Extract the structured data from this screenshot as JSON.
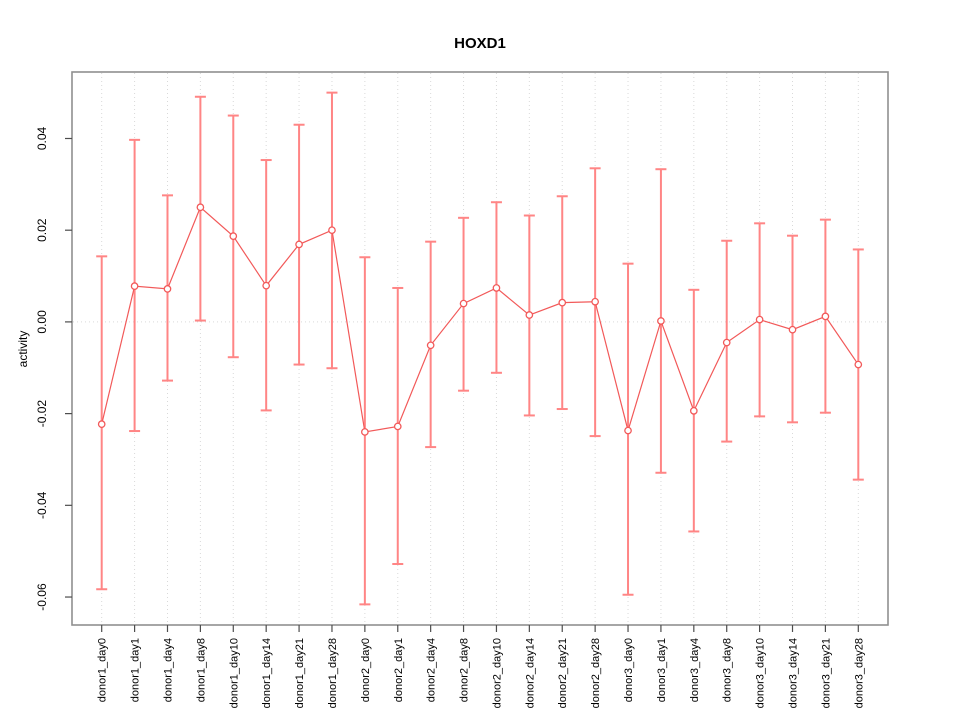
{
  "chart_data": {
    "type": "line",
    "subtype": "points-with-error-bars",
    "title": "HOXD1",
    "ylabel": "activity",
    "xlabel": "",
    "legend": "none",
    "grid": "dotted vertical gridline at each category; dotted horizontal line at y=0",
    "categories": [
      "donor1_day0",
      "donor1_day1",
      "donor1_day4",
      "donor1_day8",
      "donor1_day10",
      "donor1_day14",
      "donor1_day21",
      "donor1_day28",
      "donor2_day0",
      "donor2_day1",
      "donor2_day4",
      "donor2_day8",
      "donor2_day10",
      "donor2_day14",
      "donor2_day21",
      "donor2_day28",
      "donor3_day0",
      "donor3_day1",
      "donor3_day4",
      "donor3_day8",
      "donor3_day10",
      "donor3_day14",
      "donor3_day21",
      "donor3_day28"
    ],
    "series": [
      {
        "name": "activity",
        "values": [
          -0.0223,
          0.0078,
          0.0072,
          0.025,
          0.0187,
          0.0079,
          0.0169,
          0.02,
          -0.024,
          -0.0228,
          -0.0051,
          0.004,
          0.0074,
          0.0015,
          0.0042,
          0.0044,
          -0.0237,
          0.0002,
          -0.0194,
          -0.0045,
          0.0005,
          -0.0017,
          0.0012,
          -0.0093
        ],
        "err_upper": [
          0.0143,
          0.0397,
          0.0276,
          0.0491,
          0.045,
          0.0353,
          0.043,
          0.05,
          0.0141,
          0.0074,
          0.0175,
          0.0227,
          0.0261,
          0.0232,
          0.0274,
          0.0335,
          0.0127,
          0.0333,
          0.007,
          0.0177,
          0.0215,
          0.0188,
          0.0223,
          0.0158
        ],
        "err_lower": [
          -0.0583,
          -0.0238,
          -0.0128,
          0.0003,
          -0.0077,
          -0.0193,
          -0.0093,
          -0.0101,
          -0.0616,
          -0.0528,
          -0.0273,
          -0.015,
          -0.0111,
          -0.0204,
          -0.019,
          -0.0249,
          -0.0595,
          -0.0329,
          -0.0457,
          -0.0261,
          -0.0206,
          -0.0219,
          -0.0198,
          -0.0344
        ]
      }
    ],
    "ylim": [
      -0.0661,
      0.0545
    ],
    "yticks": {
      "values": [
        0.04,
        0.02,
        0,
        -0.02,
        -0.04,
        -0.06
      ],
      "labels": [
        "0.04",
        "0.02",
        "0.00",
        "-0.02",
        "-0.04",
        "-0.06"
      ]
    },
    "colors": {
      "point": "#f25959",
      "line": "#f25959",
      "error_bar": "#ff8585",
      "grid": "#d9d9d9",
      "zero_line": "#d9d9d9",
      "frame": "#8f8f8f",
      "tick": "#4d4d4d",
      "text": "#000000",
      "background": "#ffffff"
    }
  }
}
